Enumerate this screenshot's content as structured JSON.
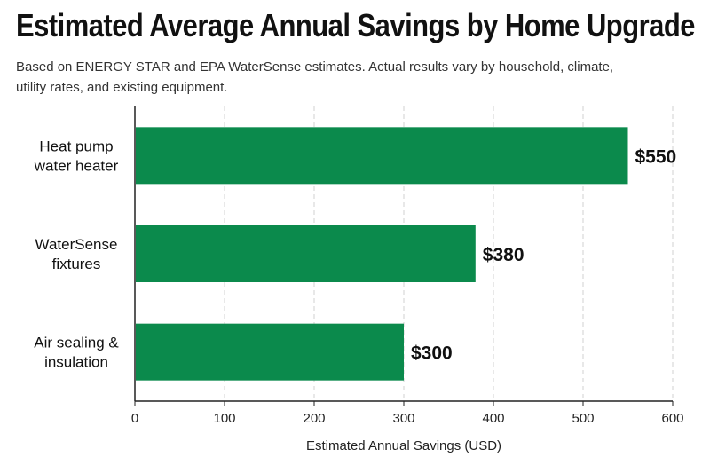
{
  "chart_data": {
    "type": "bar",
    "orientation": "horizontal",
    "title": "Estimated Average Annual Savings by Home Upgrade",
    "subtitle": "Based on ENERGY STAR and EPA WaterSense estimates. Actual results vary by household, climate, utility rates, and existing equipment.",
    "categories": [
      [
        "Heat pump",
        "water heater"
      ],
      [
        "WaterSense",
        "fixtures"
      ],
      [
        "Air sealing &",
        "insulation"
      ]
    ],
    "values": [
      550,
      380,
      300
    ],
    "data_labels": [
      "$550",
      "$380",
      "$300"
    ],
    "xlabel": "Estimated Annual Savings (USD)",
    "ylabel": "",
    "xlim": [
      0,
      600
    ],
    "xticks": [
      0,
      100,
      200,
      300,
      400,
      500,
      600
    ],
    "grid": "vertical dashed",
    "colors": {
      "bar": "#0b8a4c",
      "grid": "#d0d0d0",
      "axis": "#222222"
    }
  }
}
